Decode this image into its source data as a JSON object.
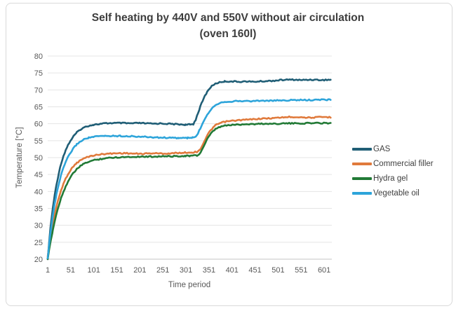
{
  "frame": {
    "background": "#ffffff",
    "border_color": "#d9d9d9"
  },
  "chart_data": {
    "type": "line",
    "title": "Self heating by 440V and 550V without air circulation",
    "subtitle": "(oven 160l)",
    "xlabel": "Time period",
    "ylabel": "Temperature [°C]",
    "xlim": [
      1,
      617
    ],
    "ylim": [
      20,
      80
    ],
    "x_ticks": [
      1,
      51,
      101,
      151,
      201,
      251,
      301,
      351,
      401,
      451,
      501,
      551,
      601
    ],
    "y_ticks": [
      20,
      25,
      30,
      35,
      40,
      45,
      50,
      55,
      60,
      65,
      70,
      75,
      80
    ],
    "grid": "horizontal",
    "legend_position": "right",
    "text_colors": {
      "title": "#3d3d3d",
      "ticks": "#595959",
      "legend": "#3f3f3f"
    },
    "grid_color": "#e5e5e5",
    "axis_line_color": "#c6c6c6",
    "series": [
      {
        "name": "GAS",
        "color": "#205e76",
        "points": [
          [
            1,
            20
          ],
          [
            4,
            25
          ],
          [
            8,
            30.5
          ],
          [
            12,
            35
          ],
          [
            16,
            38.8
          ],
          [
            20,
            42
          ],
          [
            25,
            45.4
          ],
          [
            30,
            48.2
          ],
          [
            35,
            50.4
          ],
          [
            40,
            52.2
          ],
          [
            45,
            53.7
          ],
          [
            50,
            54.9
          ],
          [
            57,
            56.3
          ],
          [
            64,
            57.4
          ],
          [
            72,
            58.3
          ],
          [
            80,
            58.9
          ],
          [
            90,
            59.4
          ],
          [
            100,
            59.7
          ],
          [
            112,
            59.9
          ],
          [
            125,
            60.1
          ],
          [
            140,
            60.2
          ],
          [
            160,
            60.2
          ],
          [
            180,
            60.1
          ],
          [
            200,
            60.2
          ],
          [
            215,
            60.1
          ],
          [
            230,
            60.0
          ],
          [
            245,
            60.1
          ],
          [
            260,
            60.0
          ],
          [
            275,
            59.9
          ],
          [
            290,
            59.8
          ],
          [
            300,
            59.7
          ],
          [
            310,
            59.75
          ],
          [
            317,
            59.9
          ],
          [
            322,
            61.2
          ],
          [
            327,
            63.1
          ],
          [
            332,
            65.0
          ],
          [
            337,
            66.7
          ],
          [
            342,
            68.2
          ],
          [
            347,
            69.4
          ],
          [
            352,
            70.4
          ],
          [
            357,
            71.1
          ],
          [
            362,
            71.6
          ],
          [
            368,
            72.0
          ],
          [
            375,
            72.3
          ],
          [
            385,
            72.5
          ],
          [
            400,
            72.5
          ],
          [
            415,
            72.4
          ],
          [
            430,
            72.5
          ],
          [
            445,
            72.4
          ],
          [
            460,
            72.5
          ],
          [
            475,
            72.6
          ],
          [
            490,
            72.7
          ],
          [
            505,
            72.9
          ],
          [
            520,
            73.0
          ],
          [
            535,
            73.0
          ],
          [
            550,
            72.9
          ],
          [
            565,
            73.0
          ],
          [
            580,
            73.0
          ],
          [
            595,
            72.9
          ],
          [
            615,
            73.0
          ]
        ]
      },
      {
        "name": "Commercial filler",
        "color": "#e07a3c",
        "points": [
          [
            1,
            20.8
          ],
          [
            4,
            23.8
          ],
          [
            8,
            27.3
          ],
          [
            12,
            30.4
          ],
          [
            16,
            33.1
          ],
          [
            20,
            35.5
          ],
          [
            25,
            38.1
          ],
          [
            30,
            40.3
          ],
          [
            35,
            42.2
          ],
          [
            40,
            43.8
          ],
          [
            45,
            45.1
          ],
          [
            50,
            46.2
          ],
          [
            57,
            47.5
          ],
          [
            64,
            48.4
          ],
          [
            72,
            49.2
          ],
          [
            80,
            49.8
          ],
          [
            90,
            50.3
          ],
          [
            100,
            50.6
          ],
          [
            112,
            50.9
          ],
          [
            125,
            51.1
          ],
          [
            140,
            51.2
          ],
          [
            155,
            51.3
          ],
          [
            170,
            51.3
          ],
          [
            185,
            51.2
          ],
          [
            200,
            51.1
          ],
          [
            215,
            51.2
          ],
          [
            230,
            51.3
          ],
          [
            245,
            51.2
          ],
          [
            260,
            51.2
          ],
          [
            275,
            51.3
          ],
          [
            290,
            51.4
          ],
          [
            300,
            51.5
          ],
          [
            310,
            51.5
          ],
          [
            318,
            51.6
          ],
          [
            325,
            51.7
          ],
          [
            330,
            52.1
          ],
          [
            335,
            53.2
          ],
          [
            340,
            54.6
          ],
          [
            345,
            56.0
          ],
          [
            350,
            57.2
          ],
          [
            355,
            58.1
          ],
          [
            360,
            58.9
          ],
          [
            365,
            59.5
          ],
          [
            372,
            60.0
          ],
          [
            380,
            60.4
          ],
          [
            390,
            60.7
          ],
          [
            405,
            60.9
          ],
          [
            420,
            61.1
          ],
          [
            435,
            61.2
          ],
          [
            450,
            61.4
          ],
          [
            465,
            61.5
          ],
          [
            480,
            61.6
          ],
          [
            495,
            61.7
          ],
          [
            510,
            61.9
          ],
          [
            525,
            62.0
          ],
          [
            540,
            62.0
          ],
          [
            555,
            61.9
          ],
          [
            570,
            61.8
          ],
          [
            585,
            61.9
          ],
          [
            600,
            62.0
          ],
          [
            615,
            61.9
          ]
        ]
      },
      {
        "name": "Hydra gel",
        "color": "#227a36",
        "points": [
          [
            1,
            20
          ],
          [
            4,
            22.6
          ],
          [
            8,
            25.7
          ],
          [
            12,
            28.5
          ],
          [
            16,
            31.1
          ],
          [
            20,
            33.4
          ],
          [
            25,
            35.9
          ],
          [
            30,
            38.0
          ],
          [
            35,
            39.9
          ],
          [
            40,
            41.5
          ],
          [
            45,
            42.9
          ],
          [
            50,
            44.1
          ],
          [
            57,
            45.5
          ],
          [
            64,
            46.6
          ],
          [
            72,
            47.5
          ],
          [
            80,
            48.2
          ],
          [
            90,
            48.8
          ],
          [
            100,
            49.2
          ],
          [
            112,
            49.5
          ],
          [
            125,
            49.8
          ],
          [
            140,
            50.0
          ],
          [
            155,
            50.1
          ],
          [
            170,
            50.2
          ],
          [
            185,
            50.2
          ],
          [
            200,
            50.3
          ],
          [
            215,
            50.3
          ],
          [
            230,
            50.3
          ],
          [
            245,
            50.4
          ],
          [
            260,
            50.4
          ],
          [
            275,
            50.4
          ],
          [
            290,
            50.5
          ],
          [
            300,
            50.5
          ],
          [
            310,
            50.5
          ],
          [
            318,
            50.6
          ],
          [
            325,
            50.6
          ],
          [
            330,
            51.0
          ],
          [
            335,
            52.1
          ],
          [
            340,
            53.5
          ],
          [
            345,
            54.9
          ],
          [
            350,
            56.1
          ],
          [
            355,
            57.0
          ],
          [
            360,
            57.8
          ],
          [
            365,
            58.4
          ],
          [
            372,
            58.9
          ],
          [
            380,
            59.3
          ],
          [
            390,
            59.5
          ],
          [
            405,
            59.7
          ],
          [
            420,
            59.8
          ],
          [
            435,
            59.9
          ],
          [
            450,
            59.9
          ],
          [
            465,
            60.0
          ],
          [
            480,
            60.0
          ],
          [
            495,
            60.0
          ],
          [
            510,
            60.1
          ],
          [
            525,
            60.1
          ],
          [
            540,
            60.1
          ],
          [
            555,
            60.1
          ],
          [
            570,
            60.2
          ],
          [
            585,
            60.2
          ],
          [
            600,
            60.2
          ],
          [
            615,
            60.2
          ]
        ]
      },
      {
        "name": "Vegetable oil",
        "color": "#2da4da",
        "points": [
          [
            1,
            20.3
          ],
          [
            4,
            24.2
          ],
          [
            8,
            28.8
          ],
          [
            12,
            32.8
          ],
          [
            16,
            36.2
          ],
          [
            20,
            39.1
          ],
          [
            25,
            42.2
          ],
          [
            30,
            44.8
          ],
          [
            35,
            46.9
          ],
          [
            40,
            48.7
          ],
          [
            45,
            50.1
          ],
          [
            50,
            51.3
          ],
          [
            57,
            52.8
          ],
          [
            64,
            53.9
          ],
          [
            72,
            54.8
          ],
          [
            80,
            55.4
          ],
          [
            90,
            55.9
          ],
          [
            100,
            56.1
          ],
          [
            112,
            56.3
          ],
          [
            125,
            56.4
          ],
          [
            140,
            56.4
          ],
          [
            160,
            56.4
          ],
          [
            180,
            56.3
          ],
          [
            200,
            56.2
          ],
          [
            215,
            56.1
          ],
          [
            230,
            56.0
          ],
          [
            245,
            55.9
          ],
          [
            260,
            55.9
          ],
          [
            272,
            55.8
          ],
          [
            285,
            55.8
          ],
          [
            295,
            55.8
          ],
          [
            305,
            55.8
          ],
          [
            315,
            55.9
          ],
          [
            322,
            56.1
          ],
          [
            327,
            57.1
          ],
          [
            332,
            58.6
          ],
          [
            337,
            60.1
          ],
          [
            342,
            61.5
          ],
          [
            347,
            62.7
          ],
          [
            352,
            63.7
          ],
          [
            357,
            64.5
          ],
          [
            362,
            65.2
          ],
          [
            368,
            65.8
          ],
          [
            375,
            66.2
          ],
          [
            385,
            66.5
          ],
          [
            400,
            66.6
          ],
          [
            415,
            66.7
          ],
          [
            430,
            66.7
          ],
          [
            445,
            66.7
          ],
          [
            460,
            66.8
          ],
          [
            475,
            66.8
          ],
          [
            490,
            66.8
          ],
          [
            505,
            66.9
          ],
          [
            520,
            66.9
          ],
          [
            535,
            67.0
          ],
          [
            550,
            67.0
          ],
          [
            565,
            67.0
          ],
          [
            580,
            67.0
          ],
          [
            595,
            67.1
          ],
          [
            615,
            67.1
          ]
        ]
      }
    ]
  }
}
